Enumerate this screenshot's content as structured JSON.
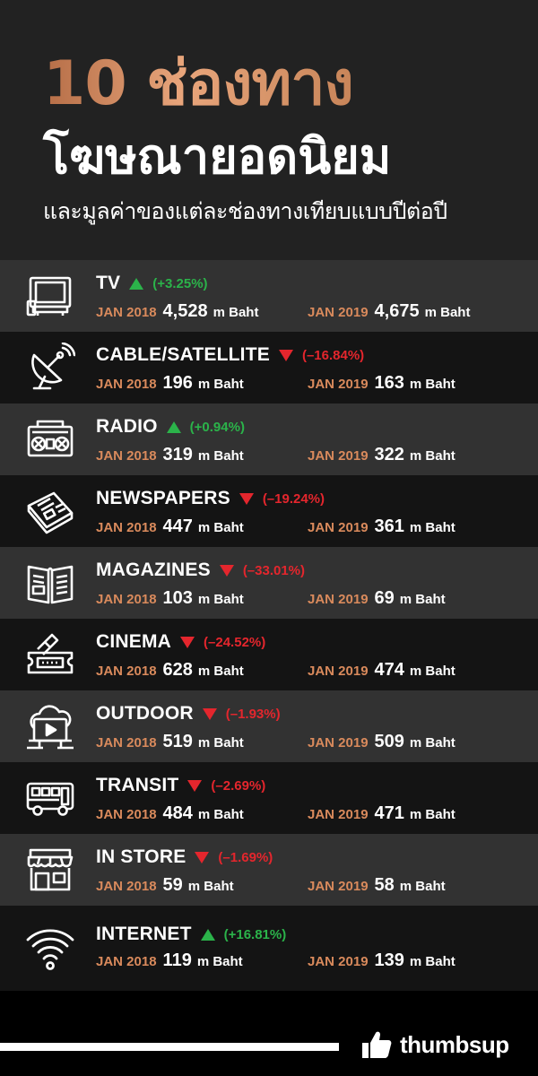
{
  "header": {
    "title_line1": "10 ช่องทาง",
    "title_line2": "โฆษณายอดนิยม",
    "subtitle": "และมูลค่าของแต่ละช่องทางเทียบแบบปีต่อปี"
  },
  "labels": {
    "year1": "JAN 2018",
    "year2": "JAN 2019",
    "unit": "m Baht"
  },
  "colors": {
    "accent_copper": "#d98a5c",
    "up_green": "#2bb34a",
    "down_red": "#e4262d"
  },
  "rows": [
    {
      "name": "TV",
      "icon": "tv-icon",
      "trend": "up",
      "change": "(+3.25%)",
      "jan2018": "4,528",
      "jan2019": "4,675"
    },
    {
      "name": "CABLE/SATELLITE",
      "icon": "satellite-dish-icon",
      "trend": "down",
      "change": "(–16.84%)",
      "jan2018": "196",
      "jan2019": "163"
    },
    {
      "name": "RADIO",
      "icon": "radio-icon",
      "trend": "up",
      "change": "(+0.94%)",
      "jan2018": "319",
      "jan2019": "322"
    },
    {
      "name": "NEWSPAPERS",
      "icon": "newspaper-icon",
      "trend": "down",
      "change": "(–19.24%)",
      "jan2018": "447",
      "jan2019": "361"
    },
    {
      "name": "MAGAZINES",
      "icon": "magazine-icon",
      "trend": "down",
      "change": "(–33.01%)",
      "jan2018": "103",
      "jan2019": "69"
    },
    {
      "name": "CINEMA",
      "icon": "cinema-ticket-icon",
      "trend": "down",
      "change": "(–24.52%)",
      "jan2018": "628",
      "jan2019": "474"
    },
    {
      "name": "OUTDOOR",
      "icon": "billboard-icon",
      "trend": "down",
      "change": "(–1.93%)",
      "jan2018": "519",
      "jan2019": "509"
    },
    {
      "name": "TRANSIT",
      "icon": "bus-icon",
      "trend": "down",
      "change": "(–2.69%)",
      "jan2018": "484",
      "jan2019": "471"
    },
    {
      "name": "IN STORE",
      "icon": "storefront-icon",
      "trend": "down",
      "change": "(–1.69%)",
      "jan2018": "59",
      "jan2019": "58"
    },
    {
      "name": "INTERNET",
      "icon": "wifi-icon",
      "trend": "up",
      "change": "(+16.81%)",
      "jan2018": "119",
      "jan2019": "139"
    }
  ],
  "footer": {
    "brand": "thumbsup",
    "brand_icon": "thumbs-up-icon"
  }
}
